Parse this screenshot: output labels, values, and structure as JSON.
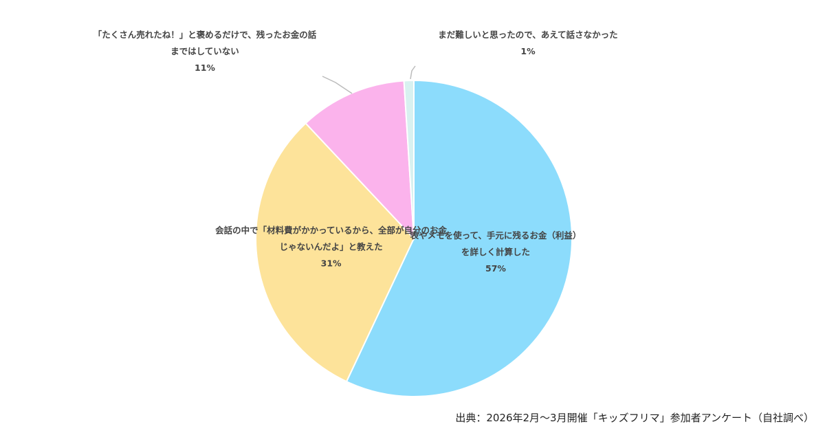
{
  "chart_data": {
    "type": "pie",
    "start_angle_deg": 0,
    "direction": "clockwise",
    "slices": [
      {
        "label_lines": [
          "表やメモを使って、手元に残るお金（利益）",
          "を詳しく計算した"
        ],
        "value": 57,
        "value_label": "57%",
        "color": "#8cdcfc",
        "label_placement": "inside"
      },
      {
        "label_lines": [
          "会話の中で「材料費がかかっているから、全部が自分のお金",
          "じゃないんだよ」と教えた"
        ],
        "value": 31,
        "value_label": "31%",
        "color": "#fde39a",
        "label_placement": "inside"
      },
      {
        "label_lines": [
          "「たくさん売れたね！」と褒めるだけで、残ったお金の話",
          "まではしていない"
        ],
        "value": 11,
        "value_label": "11%",
        "color": "#fbb3ec",
        "label_placement": "outside"
      },
      {
        "label_lines": [
          "まだ難しいと思ったので、あえて話さなかった"
        ],
        "value": 1,
        "value_label": "1%",
        "color": "#d8f1f0",
        "label_placement": "outside"
      }
    ]
  },
  "source_note": "出典：2026年2月〜3月開催「キッズフリマ」参加者アンケート（自社調べ）"
}
